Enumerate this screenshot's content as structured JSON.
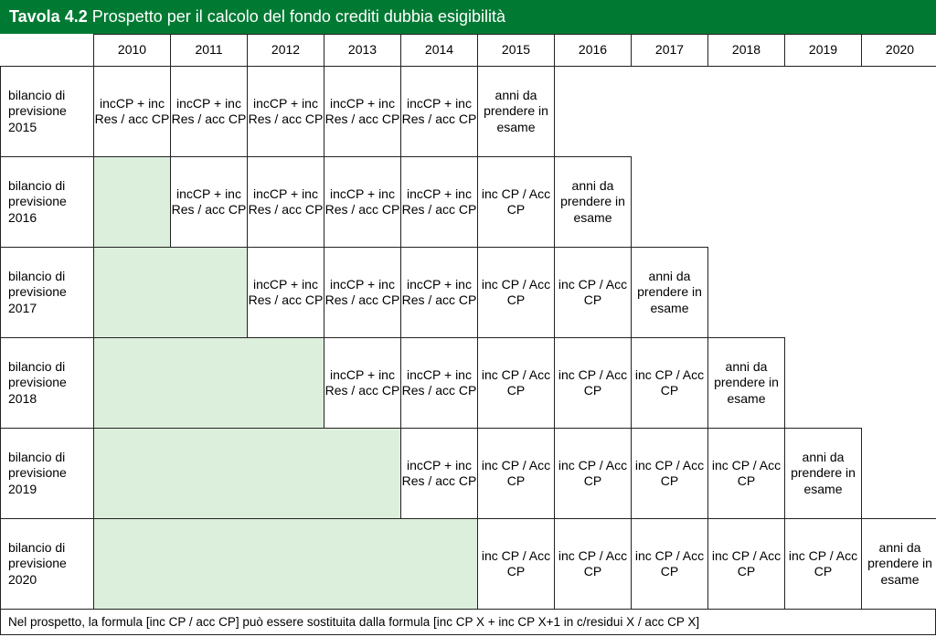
{
  "colors": {
    "header_bg": "#007a33",
    "header_text": "#ffffff",
    "shade_bg": "#dcefdc",
    "border": "#222222"
  },
  "title_prefix": "Tavola 4.2",
  "title_rest": " Prospetto per il calcolo del fondo crediti dubbia esigibilità",
  "years": [
    "2010",
    "2011",
    "2012",
    "2013",
    "2014",
    "2015",
    "2016",
    "2017",
    "2018",
    "2019",
    "2020"
  ],
  "row_labels": [
    "bilancio di previsione 2015",
    "bilancio di previsione 2016",
    "bilancio di previsione 2017",
    "bilancio di previsione 2018",
    "bilancio di previsione 2019",
    "bilancio di previsione 2020"
  ],
  "cell_text": {
    "formula_a": "incCP + inc Res / acc CP",
    "formula_b": "inc CP / Acc CP",
    "exam": "anni da prendere in esame"
  },
  "rows": [
    {
      "cells": [
        "a",
        "a",
        "a",
        "a",
        "a",
        "e",
        "x",
        "x",
        "x",
        "x",
        "x"
      ]
    },
    {
      "cells": [
        "s",
        "a",
        "a",
        "a",
        "a",
        "b",
        "e",
        "x",
        "x",
        "x",
        "x"
      ]
    },
    {
      "cells": [
        "s",
        "s",
        "a",
        "a",
        "a",
        "b",
        "b",
        "e",
        "x",
        "x",
        "x"
      ]
    },
    {
      "cells": [
        "s",
        "s",
        "s",
        "a",
        "a",
        "b",
        "b",
        "b",
        "e",
        "x",
        "x"
      ]
    },
    {
      "cells": [
        "s",
        "s",
        "s",
        "s",
        "a",
        "b",
        "b",
        "b",
        "b",
        "e",
        "x"
      ]
    },
    {
      "cells": [
        "s",
        "s",
        "s",
        "s",
        "s",
        "b",
        "b",
        "b",
        "b",
        "b",
        "e"
      ]
    }
  ],
  "footnote": "Nel prospetto, la formula [inc CP / acc CP] può essere sostituita dalla formula [inc CP X + inc CP X+1 in c/residui X / acc CP X]"
}
